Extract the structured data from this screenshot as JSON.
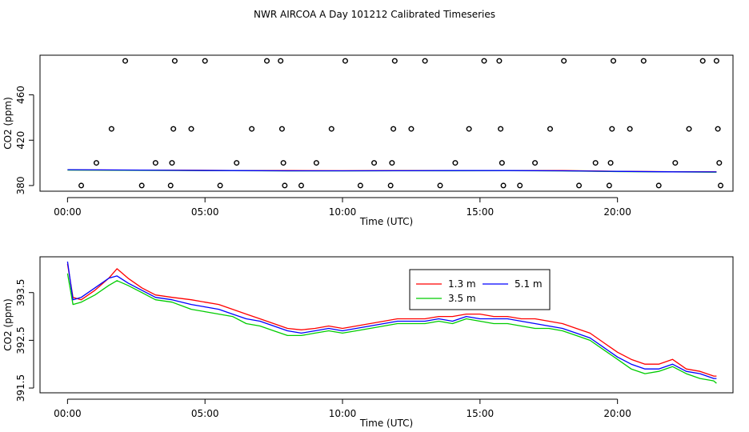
{
  "title": "NWR AIRCOA A  Day 101212  Calibrated Timeseries",
  "colors": {
    "red": "#ff0000",
    "green": "#00cc00",
    "blue": "#0000ff",
    "axis": "#000000"
  },
  "chart_data": [
    {
      "type": "scatter",
      "xlabel": "Time (UTC)",
      "ylabel": "CO2 (ppm)",
      "xlim": [
        -1,
        24.2
      ],
      "ylim": [
        375,
        495
      ],
      "x_ticks": [
        0,
        5,
        10,
        15,
        20
      ],
      "x_tick_labels": [
        "00:00",
        "05:00",
        "10:00",
        "15:00",
        "20:00"
      ],
      "y_ticks": [
        380,
        420,
        460
      ],
      "y_tick_labels": [
        "380",
        "420",
        "460"
      ],
      "points": [
        {
          "x": 0.5,
          "y": 380
        },
        {
          "x": 1.05,
          "y": 400
        },
        {
          "x": 1.6,
          "y": 430
        },
        {
          "x": 2.1,
          "y": 490
        },
        {
          "x": 2.7,
          "y": 380
        },
        {
          "x": 3.2,
          "y": 400
        },
        {
          "x": 3.75,
          "y": 380
        },
        {
          "x": 3.8,
          "y": 400
        },
        {
          "x": 3.85,
          "y": 430
        },
        {
          "x": 3.9,
          "y": 490
        },
        {
          "x": 4.5,
          "y": 430
        },
        {
          "x": 5.0,
          "y": 490
        },
        {
          "x": 5.55,
          "y": 380
        },
        {
          "x": 6.15,
          "y": 400
        },
        {
          "x": 6.7,
          "y": 430
        },
        {
          "x": 7.25,
          "y": 490
        },
        {
          "x": 7.75,
          "y": 490
        },
        {
          "x": 7.8,
          "y": 430
        },
        {
          "x": 7.85,
          "y": 400
        },
        {
          "x": 7.9,
          "y": 380
        },
        {
          "x": 8.5,
          "y": 380
        },
        {
          "x": 9.05,
          "y": 400
        },
        {
          "x": 9.6,
          "y": 430
        },
        {
          "x": 10.1,
          "y": 490
        },
        {
          "x": 10.65,
          "y": 380
        },
        {
          "x": 11.15,
          "y": 400
        },
        {
          "x": 11.75,
          "y": 380
        },
        {
          "x": 11.8,
          "y": 400
        },
        {
          "x": 11.85,
          "y": 430
        },
        {
          "x": 11.9,
          "y": 490
        },
        {
          "x": 12.5,
          "y": 430
        },
        {
          "x": 13.0,
          "y": 490
        },
        {
          "x": 13.55,
          "y": 380
        },
        {
          "x": 14.1,
          "y": 400
        },
        {
          "x": 14.6,
          "y": 430
        },
        {
          "x": 15.15,
          "y": 490
        },
        {
          "x": 15.7,
          "y": 490
        },
        {
          "x": 15.75,
          "y": 430
        },
        {
          "x": 15.8,
          "y": 400
        },
        {
          "x": 15.85,
          "y": 380
        },
        {
          "x": 16.45,
          "y": 380
        },
        {
          "x": 17.0,
          "y": 400
        },
        {
          "x": 17.55,
          "y": 430
        },
        {
          "x": 18.05,
          "y": 490
        },
        {
          "x": 18.6,
          "y": 380
        },
        {
          "x": 19.2,
          "y": 400
        },
        {
          "x": 19.7,
          "y": 380
        },
        {
          "x": 19.75,
          "y": 400
        },
        {
          "x": 19.8,
          "y": 430
        },
        {
          "x": 19.85,
          "y": 490
        },
        {
          "x": 20.45,
          "y": 430
        },
        {
          "x": 20.95,
          "y": 490
        },
        {
          "x": 21.5,
          "y": 380
        },
        {
          "x": 22.1,
          "y": 400
        },
        {
          "x": 22.6,
          "y": 430
        },
        {
          "x": 23.1,
          "y": 490
        },
        {
          "x": 23.6,
          "y": 490
        },
        {
          "x": 23.65,
          "y": 430
        },
        {
          "x": 23.7,
          "y": 400
        },
        {
          "x": 23.75,
          "y": 380
        }
      ],
      "series": [
        {
          "name": "1.3 m",
          "color": "#ff0000",
          "x": [
            0,
            2,
            4,
            6,
            8,
            10,
            12,
            14,
            16,
            18,
            20,
            22,
            23.6
          ],
          "values": [
            393.8,
            393.6,
            393.5,
            393.3,
            393.2,
            393.1,
            393.2,
            393.3,
            393.3,
            393.2,
            392.6,
            392.2,
            392.1
          ]
        },
        {
          "name": "3.5 m",
          "color": "#00cc00",
          "x": [
            0,
            2,
            4,
            6,
            8,
            10,
            12,
            14,
            16,
            18,
            20,
            22,
            23.6
          ],
          "values": [
            393.6,
            393.5,
            393.3,
            393.1,
            392.9,
            392.9,
            393.0,
            393.0,
            393.1,
            392.9,
            392.3,
            392.0,
            391.8
          ]
        },
        {
          "name": "5.1 m",
          "color": "#0000ff",
          "x": [
            0,
            2,
            4,
            6,
            8,
            10,
            12,
            14,
            16,
            18,
            20,
            22,
            23.6
          ],
          "values": [
            394.0,
            393.7,
            393.4,
            393.2,
            393.0,
            393.0,
            393.1,
            393.2,
            393.2,
            393.0,
            392.5,
            392.1,
            392.0
          ]
        }
      ]
    },
    {
      "type": "line",
      "xlabel": "Time (UTC)",
      "ylabel": "CO2 (ppm)",
      "xlim": [
        -1,
        24.2
      ],
      "ylim": [
        391.4,
        394.25
      ],
      "x_ticks": [
        0,
        5,
        10,
        15,
        20
      ],
      "x_tick_labels": [
        "00:00",
        "05:00",
        "10:00",
        "15:00",
        "20:00"
      ],
      "y_ticks": [
        391.5,
        392.5,
        393.5
      ],
      "y_tick_labels": [
        "391.5",
        "392.5",
        "393.5"
      ],
      "legend": {
        "position": "top-center",
        "entries": [
          "1.3 m",
          "5.1 m",
          "3.5 m"
        ]
      },
      "series": [
        {
          "name": "1.3 m",
          "color": "#ff0000",
          "x": [
            0,
            0.2,
            0.5,
            1.0,
            1.5,
            1.8,
            2.2,
            2.7,
            3.2,
            3.8,
            4.5,
            5.0,
            5.5,
            6.0,
            6.5,
            7.0,
            7.5,
            8.0,
            8.5,
            9.0,
            9.5,
            10.0,
            10.5,
            11.0,
            11.5,
            12.0,
            12.5,
            13.0,
            13.5,
            14.0,
            14.5,
            15.0,
            15.5,
            16.0,
            16.5,
            17.0,
            17.5,
            18.0,
            18.5,
            19.0,
            19.5,
            20.0,
            20.5,
            21.0,
            21.5,
            22.0,
            22.5,
            23.0,
            23.5,
            23.6
          ],
          "values": [
            394.1,
            393.4,
            393.35,
            393.55,
            393.8,
            394.0,
            393.8,
            393.6,
            393.45,
            393.4,
            393.35,
            393.3,
            393.25,
            393.15,
            393.05,
            392.95,
            392.85,
            392.75,
            392.72,
            392.75,
            392.8,
            392.75,
            392.8,
            392.85,
            392.9,
            392.95,
            392.95,
            392.95,
            393.0,
            393.0,
            393.05,
            393.05,
            393.0,
            393.0,
            392.95,
            392.95,
            392.9,
            392.85,
            392.75,
            392.65,
            392.45,
            392.25,
            392.1,
            392.0,
            392.0,
            392.1,
            391.9,
            391.85,
            391.75,
            391.75
          ]
        },
        {
          "name": "3.5 m",
          "color": "#00cc00",
          "x": [
            0,
            0.2,
            0.5,
            1.0,
            1.5,
            1.8,
            2.2,
            2.7,
            3.2,
            3.8,
            4.5,
            5.0,
            5.5,
            6.0,
            6.5,
            7.0,
            7.5,
            8.0,
            8.5,
            9.0,
            9.5,
            10.0,
            10.5,
            11.0,
            11.5,
            12.0,
            12.5,
            13.0,
            13.5,
            14.0,
            14.5,
            15.0,
            15.5,
            16.0,
            16.5,
            17.0,
            17.5,
            18.0,
            18.5,
            19.0,
            19.5,
            20.0,
            20.5,
            21.0,
            21.5,
            22.0,
            22.5,
            23.0,
            23.5,
            23.6
          ],
          "values": [
            393.9,
            393.25,
            393.3,
            393.45,
            393.65,
            393.75,
            393.65,
            393.5,
            393.35,
            393.3,
            393.15,
            393.1,
            393.05,
            393.0,
            392.85,
            392.8,
            392.7,
            392.6,
            392.6,
            392.65,
            392.7,
            392.65,
            392.7,
            392.75,
            392.8,
            392.85,
            392.85,
            392.85,
            392.9,
            392.85,
            392.95,
            392.9,
            392.85,
            392.85,
            392.8,
            392.75,
            392.75,
            392.7,
            392.6,
            392.5,
            392.3,
            392.1,
            391.9,
            391.8,
            391.85,
            391.95,
            391.8,
            391.7,
            391.65,
            391.6
          ]
        },
        {
          "name": "5.1 m",
          "color": "#0000ff",
          "x": [
            0,
            0.2,
            0.5,
            1.0,
            1.5,
            1.8,
            2.2,
            2.7,
            3.2,
            3.8,
            4.5,
            5.0,
            5.5,
            6.0,
            6.5,
            7.0,
            7.5,
            8.0,
            8.5,
            9.0,
            9.5,
            10.0,
            10.5,
            11.0,
            11.5,
            12.0,
            12.5,
            13.0,
            13.5,
            14.0,
            14.5,
            15.0,
            15.5,
            16.0,
            16.5,
            17.0,
            17.5,
            18.0,
            18.5,
            19.0,
            19.5,
            20.0,
            20.5,
            21.0,
            21.5,
            22.0,
            22.5,
            23.0,
            23.5,
            23.6
          ],
          "values": [
            394.15,
            393.35,
            393.4,
            393.6,
            393.8,
            393.85,
            393.7,
            393.55,
            393.4,
            393.35,
            393.25,
            393.2,
            393.15,
            393.05,
            392.95,
            392.9,
            392.8,
            392.7,
            392.65,
            392.7,
            392.75,
            392.7,
            392.75,
            392.8,
            392.85,
            392.9,
            392.9,
            392.9,
            392.95,
            392.9,
            393.0,
            392.95,
            392.95,
            392.95,
            392.9,
            392.85,
            392.8,
            392.75,
            392.65,
            392.55,
            392.35,
            392.15,
            392.0,
            391.9,
            391.9,
            392.0,
            391.85,
            391.8,
            391.7,
            391.7
          ]
        }
      ]
    }
  ]
}
